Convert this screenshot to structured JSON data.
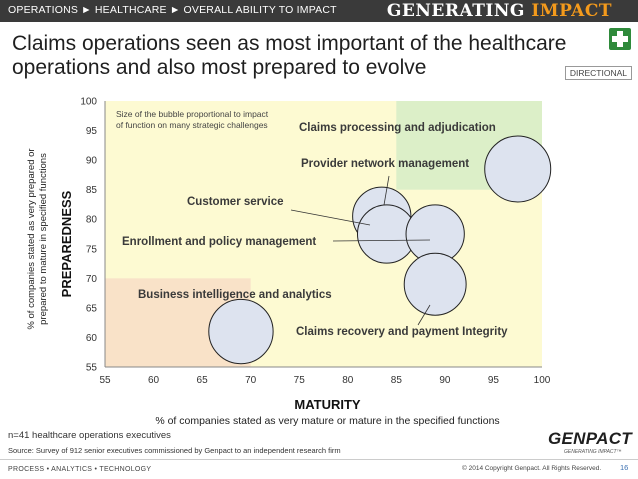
{
  "header": {
    "breadcrumb": "OPERATIONS ► HEALTHCARE ► OVERALL ABILITY TO IMPACT",
    "brand_part1": "GENERATING",
    "brand_part2": "IMPACT"
  },
  "slide": {
    "title_line1": "Claims operations seen as most important of the healthcare",
    "title_line2": "operations and also most prepared to evolve",
    "directional": "DIRECTIONAL",
    "icon": "healthcare-cross-icon"
  },
  "chart_data": {
    "type": "scatter",
    "variant": "bubble",
    "xlabel": "MATURITY",
    "xlabel_sub": "% of companies stated as very mature or mature in the specified functions",
    "ylabel": "PREPAREDNESS",
    "ylabel_sub_line1": "% of companies stated as very prepared or",
    "ylabel_sub_line2": "prepared to mature in specified functions",
    "xlim": [
      55,
      100
    ],
    "ylim": [
      55,
      100
    ],
    "xticks": [
      55,
      60,
      65,
      70,
      75,
      80,
      85,
      90,
      95,
      100
    ],
    "yticks": [
      55,
      60,
      65,
      70,
      75,
      80,
      85,
      90,
      95,
      100
    ],
    "annotation": "Size of the bubble proportional to impact of function on many strategic challenges",
    "annotation_line1": "Size of the bubble proportional to impact",
    "annotation_line2": "of function on many strategic challenges",
    "colors": {
      "zone_low": "#f9e2c8",
      "zone_mid": "#fdfad2",
      "zone_high": "#dcefc8",
      "bubble_fill": "#dde3ef",
      "bubble_stroke": "#222222"
    },
    "points": [
      {
        "label": "Claims processing and adjudication",
        "x": 97.5,
        "y": 88.5,
        "impact": 1.0
      },
      {
        "label": "Provider network management",
        "x": 83.5,
        "y": 80.5,
        "impact": 0.78
      },
      {
        "label": "Customer service",
        "x": 84,
        "y": 77.5,
        "impact": 0.78
      },
      {
        "label": "Enrollment and policy management",
        "x": 89,
        "y": 77.5,
        "impact": 0.78
      },
      {
        "label": "Business intelligence and analytics",
        "x": 69,
        "y": 61,
        "impact": 0.95
      },
      {
        "label": "Claims recovery and payment Integrity",
        "x": 89,
        "y": 69,
        "impact": 0.88
      }
    ]
  },
  "footer": {
    "n_note": "n=41 healthcare operations executives",
    "source": "Source: Survey of 912 senior executives commissioned by Genpact to an independent research firm",
    "logo": "GENPACT",
    "logo_tag": "GENERATING IMPACT™",
    "left": "PROCESS • ANALYTICS • TECHNOLOGY",
    "copyright": "© 2014 Copyright Genpact. All Rights Reserved.",
    "page": "16"
  }
}
